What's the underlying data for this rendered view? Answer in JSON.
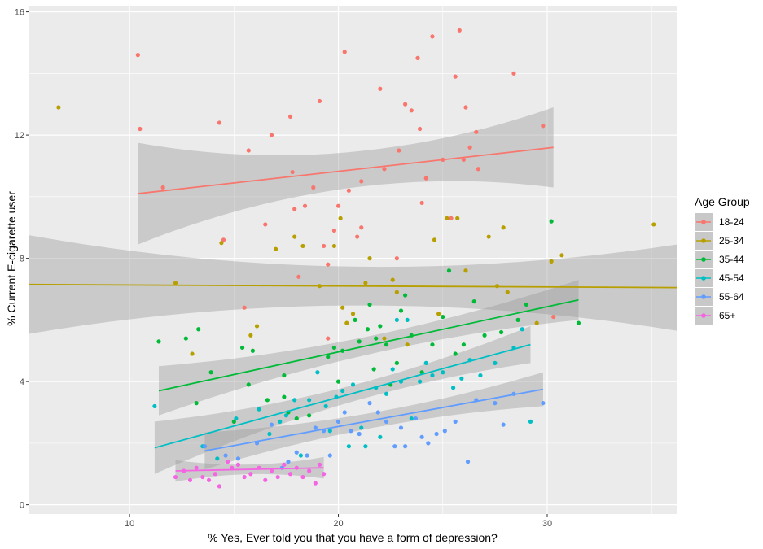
{
  "chart_data": {
    "type": "scatter",
    "title": "",
    "xlabel": "% Yes, Ever told you that you have a form of depression?",
    "ylabel": "% Current E-cigarette user",
    "xlim": [
      5.2,
      36.2
    ],
    "ylim": [
      -0.3,
      16.2
    ],
    "xticks": [
      10,
      20,
      30
    ],
    "yticks": [
      0,
      4,
      8,
      12,
      16
    ],
    "grid": true,
    "legend_title": "Age Group",
    "legend_position": "right",
    "series": [
      {
        "name": "18-24",
        "color": "#F8766D",
        "points": [
          [
            10.4,
            14.6
          ],
          [
            10.5,
            12.2
          ],
          [
            11.6,
            10.3
          ],
          [
            14.3,
            12.4
          ],
          [
            14.5,
            8.6
          ],
          [
            15.5,
            6.4
          ],
          [
            15.7,
            11.5
          ],
          [
            16.5,
            9.1
          ],
          [
            16.8,
            12.0
          ],
          [
            17.7,
            12.6
          ],
          [
            17.8,
            10.8
          ],
          [
            17.9,
            9.6
          ],
          [
            18.1,
            7.4
          ],
          [
            18.4,
            9.7
          ],
          [
            18.8,
            10.3
          ],
          [
            19.1,
            13.1
          ],
          [
            19.3,
            8.4
          ],
          [
            19.5,
            7.8
          ],
          [
            19.5,
            5.4
          ],
          [
            19.8,
            8.9
          ],
          [
            20.0,
            9.7
          ],
          [
            20.3,
            14.7
          ],
          [
            20.5,
            10.2
          ],
          [
            20.9,
            8.7
          ],
          [
            21.1,
            9.0
          ],
          [
            21.1,
            10.5
          ],
          [
            22.0,
            13.5
          ],
          [
            22.2,
            10.9
          ],
          [
            22.8,
            8.0
          ],
          [
            22.9,
            11.5
          ],
          [
            23.2,
            13.0
          ],
          [
            23.5,
            12.8
          ],
          [
            23.8,
            14.5
          ],
          [
            23.9,
            12.2
          ],
          [
            24.0,
            9.8
          ],
          [
            24.2,
            10.6
          ],
          [
            24.5,
            15.2
          ],
          [
            25.0,
            11.2
          ],
          [
            25.4,
            9.3
          ],
          [
            25.6,
            13.9
          ],
          [
            25.8,
            15.4
          ],
          [
            26.0,
            11.2
          ],
          [
            26.1,
            12.9
          ],
          [
            26.3,
            11.6
          ],
          [
            26.6,
            12.1
          ],
          [
            26.7,
            10.9
          ],
          [
            28.4,
            14.0
          ],
          [
            29.8,
            12.3
          ],
          [
            30.3,
            6.1
          ]
        ],
        "trend": {
          "x": [
            10.4,
            30.3
          ],
          "y": [
            10.1,
            11.6
          ],
          "ci_lower": [
            8.4,
            10.3
          ],
          "ci_upper": [
            11.7,
            12.9
          ]
        }
      },
      {
        "name": "25-34",
        "color": "#B79F00",
        "points": [
          [
            6.6,
            12.9
          ],
          [
            12.2,
            7.2
          ],
          [
            13.0,
            4.9
          ],
          [
            14.4,
            8.5
          ],
          [
            15.8,
            5.5
          ],
          [
            16.1,
            5.8
          ],
          [
            17.0,
            8.3
          ],
          [
            17.9,
            8.7
          ],
          [
            18.3,
            8.4
          ],
          [
            19.1,
            7.1
          ],
          [
            19.8,
            8.4
          ],
          [
            20.1,
            9.3
          ],
          [
            20.2,
            6.4
          ],
          [
            20.4,
            5.9
          ],
          [
            20.7,
            6.2
          ],
          [
            21.3,
            7.2
          ],
          [
            21.5,
            8.0
          ],
          [
            22.2,
            5.4
          ],
          [
            22.6,
            7.3
          ],
          [
            22.8,
            6.9
          ],
          [
            23.3,
            5.2
          ],
          [
            24.6,
            8.6
          ],
          [
            24.8,
            6.2
          ],
          [
            25.2,
            9.3
          ],
          [
            25.7,
            9.3
          ],
          [
            26.1,
            7.6
          ],
          [
            27.2,
            8.7
          ],
          [
            27.6,
            7.1
          ],
          [
            27.9,
            9.0
          ],
          [
            28.1,
            6.9
          ],
          [
            29.5,
            5.9
          ],
          [
            30.2,
            7.9
          ],
          [
            30.7,
            8.1
          ],
          [
            35.1,
            9.1
          ]
        ],
        "trend": {
          "x": [
            5.2,
            36.2
          ],
          "y": [
            7.15,
            7.05
          ],
          "ci_lower": [
            5.55,
            5.65
          ],
          "ci_upper": [
            8.75,
            8.45
          ]
        }
      },
      {
        "name": "35-44",
        "color": "#00BA38",
        "points": [
          [
            11.4,
            5.3
          ],
          [
            12.7,
            5.4
          ],
          [
            13.3,
            5.7
          ],
          [
            13.2,
            3.3
          ],
          [
            13.9,
            4.3
          ],
          [
            15.0,
            2.7
          ],
          [
            15.4,
            5.1
          ],
          [
            15.7,
            3.9
          ],
          [
            15.9,
            5.0
          ],
          [
            16.6,
            3.4
          ],
          [
            17.4,
            3.5
          ],
          [
            17.4,
            4.2
          ],
          [
            17.6,
            3.0
          ],
          [
            18.0,
            2.8
          ],
          [
            18.6,
            2.9
          ],
          [
            19.5,
            4.8
          ],
          [
            19.8,
            5.1
          ],
          [
            20.0,
            4.0
          ],
          [
            20.2,
            5.0
          ],
          [
            20.8,
            6.0
          ],
          [
            21.0,
            5.3
          ],
          [
            21.4,
            5.7
          ],
          [
            21.5,
            6.5
          ],
          [
            21.7,
            4.4
          ],
          [
            21.8,
            5.4
          ],
          [
            22.0,
            5.8
          ],
          [
            22.3,
            5.2
          ],
          [
            22.5,
            3.9
          ],
          [
            22.8,
            4.6
          ],
          [
            23.0,
            6.3
          ],
          [
            23.2,
            6.8
          ],
          [
            23.5,
            5.5
          ],
          [
            24.0,
            4.3
          ],
          [
            24.5,
            5.2
          ],
          [
            25.0,
            6.1
          ],
          [
            25.3,
            7.6
          ],
          [
            25.6,
            4.9
          ],
          [
            26.0,
            5.2
          ],
          [
            26.5,
            6.6
          ],
          [
            27.0,
            5.5
          ],
          [
            27.8,
            5.6
          ],
          [
            28.6,
            6.0
          ],
          [
            29.0,
            6.5
          ],
          [
            30.2,
            9.2
          ],
          [
            31.5,
            5.9
          ]
        ],
        "trend": {
          "x": [
            11.4,
            31.5
          ],
          "y": [
            3.7,
            6.65
          ],
          "ci_lower": [
            2.9,
            6.0
          ],
          "ci_upper": [
            4.5,
            7.3
          ]
        }
      },
      {
        "name": "45-54",
        "color": "#00BFC4",
        "points": [
          [
            11.2,
            3.2
          ],
          [
            13.5,
            1.9
          ],
          [
            14.2,
            1.5
          ],
          [
            15.1,
            2.8
          ],
          [
            16.2,
            3.1
          ],
          [
            16.7,
            2.3
          ],
          [
            17.2,
            2.7
          ],
          [
            17.5,
            2.9
          ],
          [
            17.9,
            3.4
          ],
          [
            18.2,
            1.6
          ],
          [
            18.6,
            3.4
          ],
          [
            19.0,
            4.3
          ],
          [
            19.4,
            3.2
          ],
          [
            19.6,
            2.4
          ],
          [
            19.9,
            3.5
          ],
          [
            20.2,
            3.7
          ],
          [
            20.5,
            1.9
          ],
          [
            20.7,
            3.9
          ],
          [
            21.1,
            2.5
          ],
          [
            21.3,
            1.9
          ],
          [
            21.8,
            3.8
          ],
          [
            22.0,
            2.2
          ],
          [
            22.3,
            3.6
          ],
          [
            22.6,
            4.4
          ],
          [
            22.8,
            6.0
          ],
          [
            23.0,
            4.0
          ],
          [
            23.3,
            6.0
          ],
          [
            23.5,
            2.8
          ],
          [
            23.9,
            4.0
          ],
          [
            24.2,
            4.6
          ],
          [
            24.5,
            4.2
          ],
          [
            25.0,
            4.3
          ],
          [
            25.5,
            3.8
          ],
          [
            25.9,
            4.1
          ],
          [
            26.3,
            4.7
          ],
          [
            26.8,
            4.2
          ],
          [
            27.5,
            4.6
          ],
          [
            28.4,
            5.1
          ],
          [
            28.8,
            5.7
          ],
          [
            29.2,
            2.7
          ]
        ],
        "trend": {
          "x": [
            11.2,
            29.2
          ],
          "y": [
            1.85,
            5.2
          ],
          "ci_lower": [
            1.0,
            4.6
          ],
          "ci_upper": [
            2.7,
            5.8
          ]
        }
      },
      {
        "name": "55-64",
        "color": "#619CFF",
        "points": [
          [
            13.6,
            1.9
          ],
          [
            14.6,
            1.6
          ],
          [
            15.2,
            1.5
          ],
          [
            16.1,
            2.0
          ],
          [
            16.8,
            2.6
          ],
          [
            17.3,
            1.2
          ],
          [
            17.6,
            1.4
          ],
          [
            18.0,
            1.7
          ],
          [
            18.5,
            1.6
          ],
          [
            18.9,
            2.5
          ],
          [
            19.3,
            2.4
          ],
          [
            19.6,
            1.6
          ],
          [
            20.0,
            2.7
          ],
          [
            20.3,
            3.0
          ],
          [
            20.6,
            2.4
          ],
          [
            21.0,
            2.3
          ],
          [
            21.5,
            3.3
          ],
          [
            21.9,
            3.0
          ],
          [
            22.3,
            2.7
          ],
          [
            22.7,
            1.9
          ],
          [
            23.0,
            2.5
          ],
          [
            23.2,
            1.9
          ],
          [
            23.7,
            2.8
          ],
          [
            24.0,
            2.2
          ],
          [
            24.3,
            2.0
          ],
          [
            24.7,
            2.3
          ],
          [
            25.1,
            2.4
          ],
          [
            25.6,
            2.7
          ],
          [
            26.2,
            1.4
          ],
          [
            26.6,
            3.4
          ],
          [
            27.5,
            3.3
          ],
          [
            27.9,
            2.6
          ],
          [
            28.4,
            3.6
          ],
          [
            29.8,
            3.3
          ]
        ],
        "trend": {
          "x": [
            13.6,
            29.8
          ],
          "y": [
            1.75,
            3.75
          ],
          "ci_lower": [
            1.15,
            3.2
          ],
          "ci_upper": [
            2.35,
            4.3
          ]
        }
      },
      {
        "name": "65+",
        "color": "#F564E3",
        "points": [
          [
            12.2,
            0.9
          ],
          [
            12.6,
            1.1
          ],
          [
            12.9,
            0.8
          ],
          [
            13.2,
            1.2
          ],
          [
            13.5,
            0.9
          ],
          [
            13.8,
            0.8
          ],
          [
            14.1,
            1.0
          ],
          [
            14.3,
            0.6
          ],
          [
            14.7,
            1.4
          ],
          [
            14.9,
            1.2
          ],
          [
            15.2,
            1.3
          ],
          [
            15.5,
            0.9
          ],
          [
            15.8,
            1.0
          ],
          [
            16.2,
            1.2
          ],
          [
            16.5,
            0.8
          ],
          [
            16.8,
            1.1
          ],
          [
            17.1,
            0.9
          ],
          [
            17.4,
            1.3
          ],
          [
            17.7,
            1.0
          ],
          [
            18.0,
            1.2
          ],
          [
            18.3,
            0.9
          ],
          [
            18.6,
            1.1
          ],
          [
            18.9,
            0.7
          ],
          [
            19.1,
            1.3
          ],
          [
            19.3,
            1.0
          ]
        ],
        "trend": {
          "x": [
            12.2,
            19.3
          ],
          "y": [
            1.1,
            1.2
          ],
          "ci_lower": [
            0.75,
            0.85
          ],
          "ci_upper": [
            1.45,
            1.55
          ]
        }
      }
    ]
  }
}
